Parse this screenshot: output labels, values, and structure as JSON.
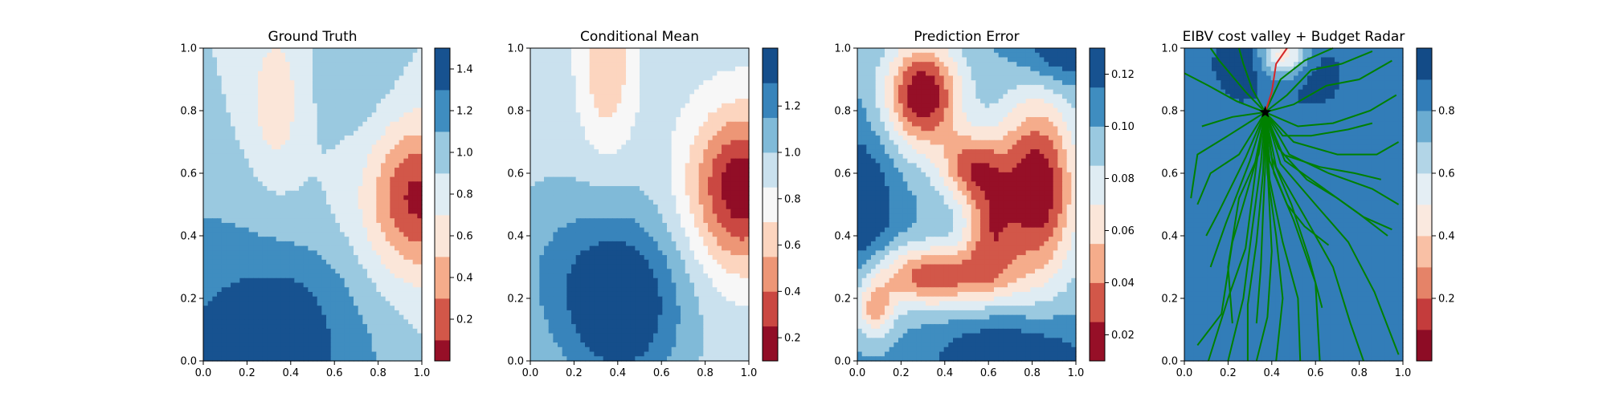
{
  "figure": {
    "background": "#ffffff"
  },
  "chart_data": [
    {
      "type": "heatmap",
      "title": "Ground Truth",
      "xlabel": "",
      "ylabel": "",
      "xlim": [
        0,
        1
      ],
      "ylim": [
        0,
        1
      ],
      "x_ticks": [
        "0.0",
        "0.2",
        "0.4",
        "0.6",
        "0.8",
        "1.0"
      ],
      "y_ticks": [
        "0.0",
        "0.2",
        "0.4",
        "0.6",
        "0.8",
        "1.0"
      ],
      "colormap": "RdBu",
      "levels": [
        0.0,
        0.1,
        0.3,
        0.5,
        0.7,
        0.9,
        1.1,
        1.3,
        1.5
      ],
      "colorbar_ticks": [
        "0.2",
        "0.4",
        "0.6",
        "0.8",
        "1.0",
        "1.2",
        "1.4"
      ],
      "colorbar_tick_values": [
        0.2,
        0.4,
        0.6,
        0.8,
        1.0,
        1.2,
        1.4
      ],
      "field": {
        "base": 0.9,
        "features": [
          {
            "x": 0.98,
            "y": 0.52,
            "amp": -0.85,
            "sx": 0.16,
            "sy": 0.17
          },
          {
            "x": 0.33,
            "y": 0.83,
            "amp": -0.35,
            "sx": 0.08,
            "sy": 0.16
          },
          {
            "x": 0.25,
            "y": 0.0,
            "amp": 0.65,
            "sx": 0.28,
            "sy": 0.16
          },
          {
            "x": 0.45,
            "y": 0.25,
            "amp": 0.2,
            "sx": 0.2,
            "sy": 0.12
          },
          {
            "x": 0.0,
            "y": 0.35,
            "amp": 0.22,
            "sx": 0.25,
            "sy": 0.18
          },
          {
            "x": 0.72,
            "y": 0.0,
            "amp": 0.1,
            "sx": 0.15,
            "sy": 0.15
          },
          {
            "x": 0.72,
            "y": 0.97,
            "amp": 0.18,
            "sx": 0.12,
            "sy": 0.18
          }
        ]
      }
    },
    {
      "type": "heatmap",
      "title": "Conditional Mean",
      "xlabel": "",
      "ylabel": "",
      "xlim": [
        0,
        1
      ],
      "ylim": [
        0,
        1
      ],
      "x_ticks": [
        "0.0",
        "0.2",
        "0.4",
        "0.6",
        "0.8",
        "1.0"
      ],
      "y_ticks": [
        "0.0",
        "0.2",
        "0.4",
        "0.6",
        "0.8",
        "1.0"
      ],
      "colormap": "RdBu",
      "levels": [
        0.1,
        0.25,
        0.4,
        0.55,
        0.7,
        0.85,
        1.0,
        1.15,
        1.3,
        1.45
      ],
      "colorbar_ticks": [
        "0.2",
        "0.4",
        "0.6",
        "0.8",
        "1.0",
        "1.2"
      ],
      "colorbar_tick_values": [
        0.2,
        0.4,
        0.6,
        0.8,
        1.0,
        1.2
      ],
      "field": {
        "base": 0.93,
        "features": [
          {
            "x": 0.97,
            "y": 0.55,
            "amp": -0.8,
            "sx": 0.17,
            "sy": 0.18
          },
          {
            "x": 0.35,
            "y": 0.95,
            "amp": -0.35,
            "sx": 0.09,
            "sy": 0.2
          },
          {
            "x": 0.42,
            "y": 0.18,
            "amp": 0.55,
            "sx": 0.2,
            "sy": 0.2
          },
          {
            "x": 0.1,
            "y": 0.3,
            "amp": 0.15,
            "sx": 0.2,
            "sy": 0.2
          }
        ]
      }
    },
    {
      "type": "heatmap",
      "title": "Prediction Error",
      "xlabel": "",
      "ylabel": "",
      "xlim": [
        0,
        1
      ],
      "ylim": [
        0,
        1
      ],
      "x_ticks": [
        "0.0",
        "0.2",
        "0.4",
        "0.6",
        "0.8",
        "1.0"
      ],
      "y_ticks": [
        "0.0",
        "0.2",
        "0.4",
        "0.6",
        "0.8",
        "1.0"
      ],
      "colormap": "RdBu",
      "levels": [
        0.01,
        0.025,
        0.04,
        0.055,
        0.07,
        0.085,
        0.1,
        0.115,
        0.13
      ],
      "colorbar_ticks": [
        "0.02",
        "0.04",
        "0.06",
        "0.08",
        "0.10",
        "0.12"
      ],
      "colorbar_tick_values": [
        0.02,
        0.04,
        0.06,
        0.08,
        0.1,
        0.12
      ],
      "field": {
        "base": 0.1,
        "features": [
          {
            "x": 0.3,
            "y": 0.85,
            "amp": -0.09,
            "sx": 0.12,
            "sy": 0.12
          },
          {
            "x": 0.82,
            "y": 0.55,
            "amp": -0.09,
            "sx": 0.13,
            "sy": 0.2
          },
          {
            "x": 0.52,
            "y": 0.62,
            "amp": -0.06,
            "sx": 0.1,
            "sy": 0.08
          },
          {
            "x": 0.35,
            "y": 0.27,
            "amp": -0.07,
            "sx": 0.22,
            "sy": 0.07
          },
          {
            "x": 0.08,
            "y": 0.16,
            "amp": -0.05,
            "sx": 0.06,
            "sy": 0.06
          },
          {
            "x": 0.6,
            "y": 0.42,
            "amp": -0.05,
            "sx": 0.08,
            "sy": 0.12
          },
          {
            "x": 0.0,
            "y": 0.48,
            "amp": 0.035,
            "sx": 0.12,
            "sy": 0.18
          },
          {
            "x": 0.95,
            "y": 1.0,
            "amp": 0.035,
            "sx": 0.15,
            "sy": 0.08
          },
          {
            "x": 0.7,
            "y": 0.0,
            "amp": 0.035,
            "sx": 0.25,
            "sy": 0.1
          }
        ]
      }
    },
    {
      "type": "heatmap",
      "title": "EIBV cost valley + Budget Radar",
      "xlabel": "",
      "ylabel": "",
      "xlim": [
        0,
        1
      ],
      "ylim": [
        0,
        1
      ],
      "x_ticks": [
        "0.0",
        "0.2",
        "0.4",
        "0.6",
        "0.8",
        "1.0"
      ],
      "y_ticks": [
        "0.0",
        "0.2",
        "0.4",
        "0.6",
        "0.8",
        "1.0"
      ],
      "colormap": "RdBu",
      "levels": [
        0.0,
        0.1,
        0.2,
        0.3,
        0.4,
        0.5,
        0.6,
        0.7,
        0.8,
        0.9,
        1.0
      ],
      "colorbar_ticks": [
        "0.2",
        "0.4",
        "0.6",
        "0.8"
      ],
      "colorbar_tick_values": [
        0.2,
        0.4,
        0.6,
        0.8
      ],
      "field": {
        "base": 0.82,
        "features": [
          {
            "x": 0.25,
            "y": 0.7,
            "amp": 0.08,
            "sx": 0.3,
            "sy": 0.3
          },
          {
            "x": 0.45,
            "y": 0.98,
            "amp": -0.45,
            "sx": 0.08,
            "sy": 0.05
          },
          {
            "x": 0.62,
            "y": 0.92,
            "amp": 0.1,
            "sx": 0.1,
            "sy": 0.08
          },
          {
            "x": 0.3,
            "y": 0.97,
            "amp": 0.12,
            "sx": 0.1,
            "sy": 0.06
          }
        ]
      },
      "overlay": {
        "start": {
          "x": 0.37,
          "y": 0.795
        },
        "trajectory_color": "#008000",
        "selected_path_color": "#d62728",
        "selected_path": [
          [
            0.37,
            0.795
          ],
          [
            0.4,
            0.86
          ],
          [
            0.42,
            0.95
          ],
          [
            0.47,
            1.0
          ]
        ],
        "trajectories": [
          [
            [
              0.37,
              0.795
            ],
            [
              0.24,
              0.83
            ],
            [
              0.11,
              0.88
            ],
            [
              0.0,
              0.92
            ]
          ],
          [
            [
              0.37,
              0.795
            ],
            [
              0.22,
              0.78
            ],
            [
              0.08,
              0.75
            ]
          ],
          [
            [
              0.37,
              0.795
            ],
            [
              0.2,
              0.72
            ],
            [
              0.06,
              0.66
            ],
            [
              0.03,
              0.52
            ]
          ],
          [
            [
              0.37,
              0.795
            ],
            [
              0.25,
              0.66
            ],
            [
              0.12,
              0.6
            ],
            [
              0.06,
              0.5
            ]
          ],
          [
            [
              0.37,
              0.795
            ],
            [
              0.28,
              0.65
            ],
            [
              0.16,
              0.48
            ],
            [
              0.1,
              0.4
            ]
          ],
          [
            [
              0.37,
              0.795
            ],
            [
              0.3,
              0.64
            ],
            [
              0.19,
              0.44
            ],
            [
              0.12,
              0.3
            ]
          ],
          [
            [
              0.37,
              0.795
            ],
            [
              0.32,
              0.62
            ],
            [
              0.22,
              0.38
            ],
            [
              0.17,
              0.15
            ],
            [
              0.06,
              0.05
            ]
          ],
          [
            [
              0.37,
              0.795
            ],
            [
              0.33,
              0.63
            ],
            [
              0.28,
              0.36
            ],
            [
              0.2,
              0.2
            ],
            [
              0.11,
              0.0
            ]
          ],
          [
            [
              0.37,
              0.795
            ],
            [
              0.35,
              0.63
            ],
            [
              0.31,
              0.42
            ],
            [
              0.27,
              0.2
            ],
            [
              0.2,
              0.0
            ]
          ],
          [
            [
              0.37,
              0.795
            ],
            [
              0.36,
              0.6
            ],
            [
              0.33,
              0.38
            ],
            [
              0.29,
              0.18
            ],
            [
              0.29,
              0.0
            ]
          ],
          [
            [
              0.37,
              0.795
            ],
            [
              0.38,
              0.62
            ],
            [
              0.4,
              0.35
            ],
            [
              0.38,
              0.14
            ],
            [
              0.33,
              0.0
            ]
          ],
          [
            [
              0.37,
              0.795
            ],
            [
              0.38,
              0.6
            ],
            [
              0.42,
              0.4
            ],
            [
              0.45,
              0.2
            ],
            [
              0.42,
              0.0
            ]
          ],
          [
            [
              0.37,
              0.795
            ],
            [
              0.39,
              0.58
            ],
            [
              0.45,
              0.38
            ],
            [
              0.52,
              0.2
            ],
            [
              0.53,
              0.0
            ]
          ],
          [
            [
              0.37,
              0.795
            ],
            [
              0.41,
              0.6
            ],
            [
              0.5,
              0.45
            ],
            [
              0.6,
              0.25
            ],
            [
              0.62,
              0.0
            ]
          ],
          [
            [
              0.37,
              0.795
            ],
            [
              0.42,
              0.62
            ],
            [
              0.56,
              0.45
            ],
            [
              0.68,
              0.3
            ],
            [
              0.76,
              0.12
            ],
            [
              0.82,
              0.0
            ]
          ],
          [
            [
              0.37,
              0.795
            ],
            [
              0.44,
              0.63
            ],
            [
              0.6,
              0.5
            ],
            [
              0.75,
              0.38
            ],
            [
              0.87,
              0.22
            ],
            [
              0.98,
              0.02
            ]
          ],
          [
            [
              0.37,
              0.795
            ],
            [
              0.46,
              0.64
            ],
            [
              0.64,
              0.55
            ],
            [
              0.8,
              0.47
            ],
            [
              0.93,
              0.4
            ]
          ],
          [
            [
              0.37,
              0.795
            ],
            [
              0.48,
              0.66
            ],
            [
              0.66,
              0.6
            ],
            [
              0.86,
              0.55
            ],
            [
              0.98,
              0.5
            ]
          ],
          [
            [
              0.37,
              0.795
            ],
            [
              0.5,
              0.7
            ],
            [
              0.7,
              0.66
            ],
            [
              0.88,
              0.66
            ],
            [
              0.98,
              0.7
            ]
          ],
          [
            [
              0.37,
              0.795
            ],
            [
              0.52,
              0.75
            ],
            [
              0.68,
              0.76
            ],
            [
              0.85,
              0.8
            ],
            [
              0.97,
              0.85
            ]
          ],
          [
            [
              0.37,
              0.795
            ],
            [
              0.5,
              0.82
            ],
            [
              0.65,
              0.88
            ],
            [
              0.8,
              0.9
            ],
            [
              0.95,
              0.96
            ]
          ],
          [
            [
              0.37,
              0.795
            ],
            [
              0.47,
              0.85
            ],
            [
              0.58,
              0.93
            ],
            [
              0.72,
              0.95
            ],
            [
              0.86,
              0.99
            ]
          ],
          [
            [
              0.37,
              0.795
            ],
            [
              0.44,
              0.9
            ],
            [
              0.55,
              0.96
            ],
            [
              0.68,
              1.0
            ]
          ],
          [
            [
              0.37,
              0.795
            ],
            [
              0.31,
              0.87
            ],
            [
              0.27,
              0.95
            ],
            [
              0.25,
              1.0
            ]
          ],
          [
            [
              0.37,
              0.795
            ],
            [
              0.28,
              0.86
            ],
            [
              0.16,
              0.96
            ],
            [
              0.12,
              1.0
            ]
          ],
          [
            [
              0.37,
              0.795
            ],
            [
              0.45,
              0.72
            ],
            [
              0.58,
              0.72
            ],
            [
              0.75,
              0.74
            ],
            [
              0.86,
              0.76
            ]
          ],
          [
            [
              0.37,
              0.795
            ],
            [
              0.43,
              0.68
            ],
            [
              0.56,
              0.58
            ],
            [
              0.7,
              0.52
            ],
            [
              0.82,
              0.46
            ],
            [
              0.95,
              0.42
            ]
          ],
          [
            [
              0.37,
              0.795
            ],
            [
              0.4,
              0.65
            ],
            [
              0.49,
              0.5
            ],
            [
              0.57,
              0.33
            ],
            [
              0.63,
              0.17
            ]
          ],
          [
            [
              0.37,
              0.795
            ],
            [
              0.39,
              0.64
            ],
            [
              0.47,
              0.5
            ],
            [
              0.55,
              0.43
            ],
            [
              0.66,
              0.37
            ]
          ],
          [
            [
              0.37,
              0.795
            ],
            [
              0.34,
              0.66
            ],
            [
              0.25,
              0.52
            ],
            [
              0.2,
              0.3
            ],
            [
              0.22,
              0.12
            ]
          ],
          [
            [
              0.37,
              0.795
            ],
            [
              0.37,
              0.62
            ],
            [
              0.36,
              0.47
            ],
            [
              0.35,
              0.3
            ],
            [
              0.33,
              0.12
            ]
          ],
          [
            [
              0.37,
              0.795
            ],
            [
              0.45,
              0.66
            ],
            [
              0.62,
              0.62
            ],
            [
              0.78,
              0.6
            ],
            [
              0.9,
              0.58
            ]
          ]
        ]
      }
    }
  ]
}
